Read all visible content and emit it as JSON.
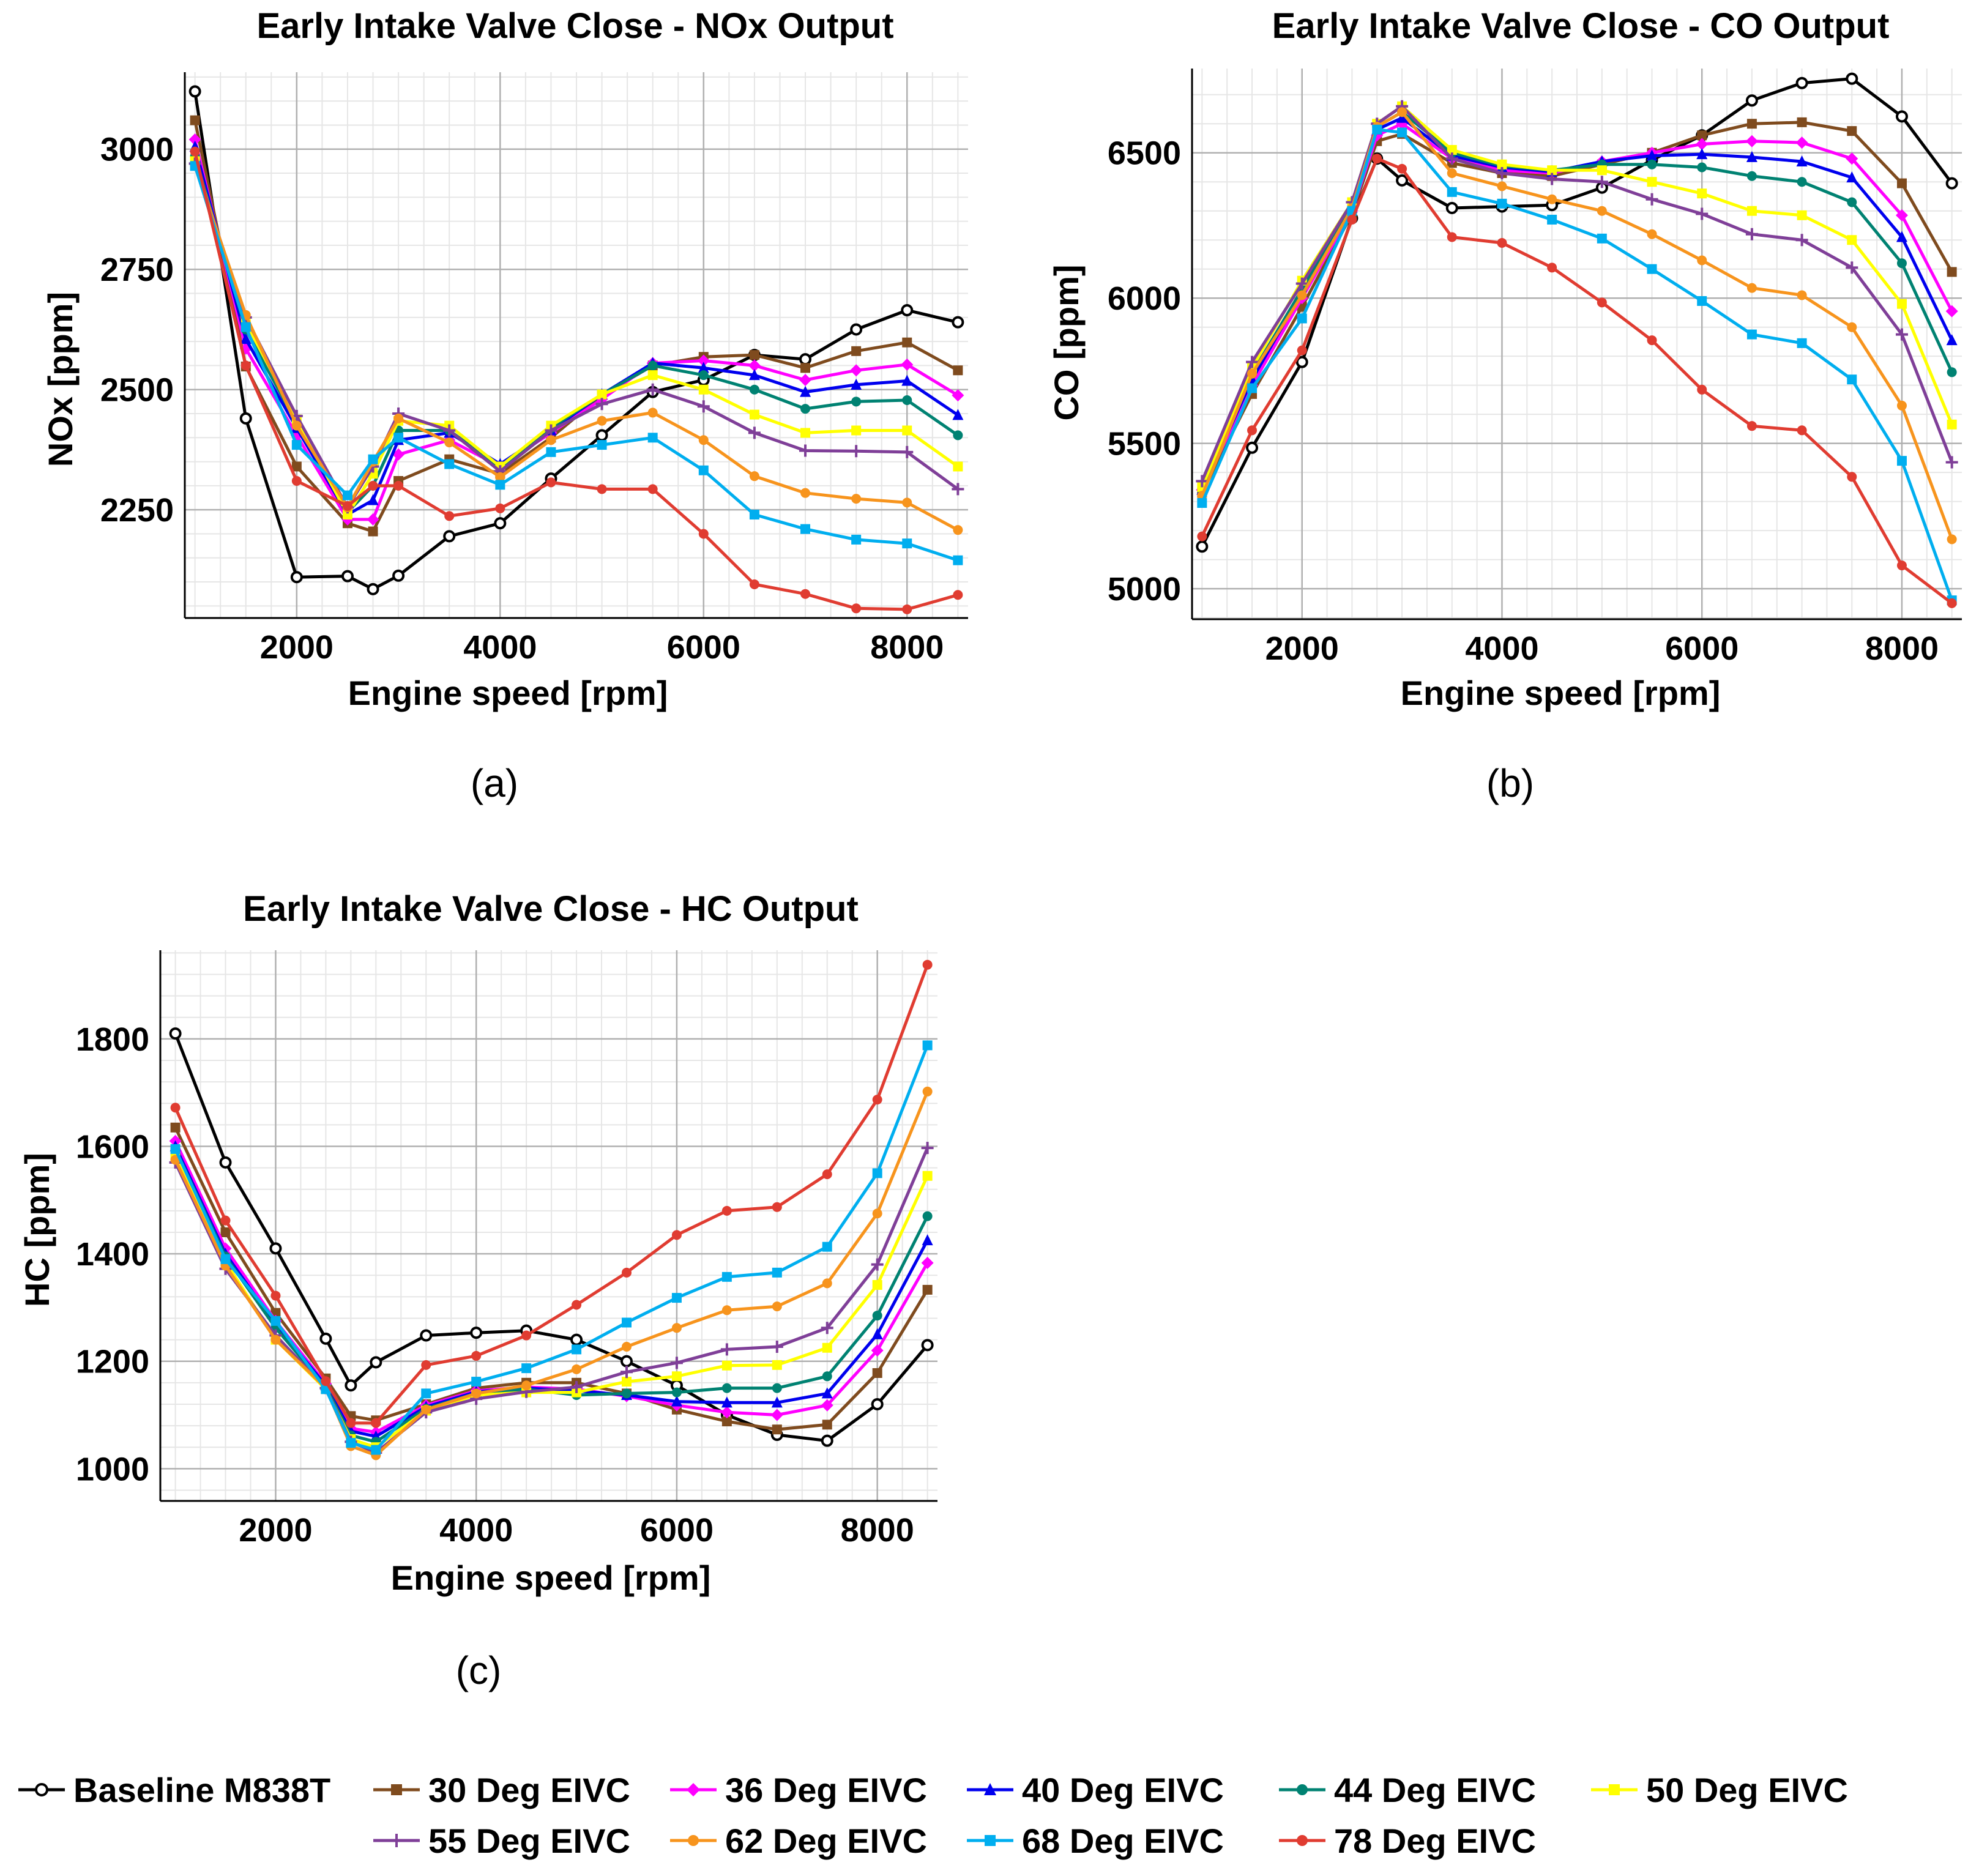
{
  "colors": {
    "baseline": "#000000",
    "d30": "#7f4b1e",
    "d36": "#ff00ff",
    "d40": "#0000ee",
    "d44": "#008272",
    "d50": "#ffff00",
    "d55": "#7f3f98",
    "d62": "#f7941d",
    "d68": "#00aeef",
    "d78": "#e03c31",
    "grid_major": "#b0b0b0",
    "grid_minor": "#e6e6e6"
  },
  "legend": [
    {
      "key": "baseline",
      "label": "Baseline M838T",
      "marker": "open-circle"
    },
    {
      "key": "d30",
      "label": "30 Deg EIVC",
      "marker": "square"
    },
    {
      "key": "d36",
      "label": "36 Deg EIVC",
      "marker": "diamond"
    },
    {
      "key": "d40",
      "label": "40 Deg EIVC",
      "marker": "triangle"
    },
    {
      "key": "d44",
      "label": "44 Deg EIVC",
      "marker": "circle"
    },
    {
      "key": "d50",
      "label": "50 Deg EIVC",
      "marker": "square"
    },
    {
      "key": "d55",
      "label": "55 Deg EIVC",
      "marker": "plus"
    },
    {
      "key": "d62",
      "label": "62 Deg EIVC",
      "marker": "circle"
    },
    {
      "key": "d68",
      "label": "68 Deg EIVC",
      "marker": "square"
    },
    {
      "key": "d78",
      "label": "78 Deg EIVC",
      "marker": "circle"
    }
  ],
  "chart_data": [
    {
      "id": "nox",
      "type": "line",
      "caption": "(a)",
      "title": "Early Intake Valve Close - NOx Output",
      "xlabel": "Engine speed [rpm]",
      "ylabel": "NOx [ppm]",
      "xlim": [
        900,
        8600
      ],
      "ylim": [
        2025,
        3160
      ],
      "xticks": [
        2000,
        4000,
        6000,
        8000
      ],
      "yticks": [
        2250,
        2500,
        2750,
        3000
      ],
      "x": [
        1000,
        1500,
        2000,
        2500,
        2750,
        3000,
        3500,
        4000,
        4500,
        5000,
        5500,
        6000,
        6500,
        7000,
        7500,
        8000,
        8500
      ],
      "series": [
        {
          "key": "baseline",
          "name": "Baseline M838T",
          "values": [
            3120,
            2440,
            2110,
            2112,
            2085,
            2113,
            2195,
            2222,
            2315,
            2405,
            2495,
            2520,
            2572,
            2563,
            2625,
            2665,
            2640
          ]
        },
        {
          "key": "d30",
          "name": "30 Deg EIVC",
          "values": [
            3060,
            2548,
            2340,
            2222,
            2205,
            2310,
            2355,
            2325,
            2400,
            2488,
            2550,
            2568,
            2572,
            2545,
            2580,
            2598,
            2540
          ]
        },
        {
          "key": "d36",
          "name": "36 Deg EIVC",
          "values": [
            3020,
            2585,
            2405,
            2230,
            2230,
            2365,
            2395,
            2340,
            2410,
            2480,
            2555,
            2560,
            2550,
            2520,
            2540,
            2552,
            2488
          ]
        },
        {
          "key": "d40",
          "name": "40 Deg EIVC",
          "values": [
            3005,
            2605,
            2420,
            2240,
            2270,
            2395,
            2410,
            2345,
            2415,
            2490,
            2555,
            2545,
            2530,
            2495,
            2510,
            2518,
            2447
          ]
        },
        {
          "key": "d44",
          "name": "44 Deg EIVC",
          "values": [
            2985,
            2625,
            2430,
            2245,
            2300,
            2415,
            2415,
            2338,
            2420,
            2490,
            2550,
            2530,
            2500,
            2460,
            2475,
            2478,
            2405
          ]
        },
        {
          "key": "d50",
          "name": "50 Deg EIVC",
          "values": [
            2975,
            2640,
            2438,
            2240,
            2325,
            2435,
            2425,
            2340,
            2425,
            2490,
            2530,
            2500,
            2448,
            2410,
            2415,
            2415,
            2340
          ]
        },
        {
          "key": "d55",
          "name": "55 Deg EIVC",
          "values": [
            2970,
            2650,
            2445,
            2255,
            2340,
            2450,
            2415,
            2330,
            2415,
            2470,
            2500,
            2465,
            2410,
            2373,
            2372,
            2370,
            2293
          ]
        },
        {
          "key": "d62",
          "name": "62 Deg EIVC",
          "values": [
            2965,
            2655,
            2425,
            2255,
            2350,
            2440,
            2390,
            2318,
            2395,
            2435,
            2452,
            2395,
            2320,
            2285,
            2273,
            2265,
            2208
          ]
        },
        {
          "key": "d68",
          "name": "68 Deg EIVC",
          "values": [
            2965,
            2630,
            2385,
            2280,
            2355,
            2400,
            2345,
            2302,
            2370,
            2385,
            2400,
            2332,
            2240,
            2210,
            2188,
            2180,
            2145
          ]
        },
        {
          "key": "d78",
          "name": "78 Deg EIVC",
          "values": [
            2995,
            2550,
            2310,
            2258,
            2300,
            2300,
            2237,
            2253,
            2307,
            2293,
            2293,
            2200,
            2095,
            2075,
            2045,
            2043,
            2073
          ]
        }
      ]
    },
    {
      "id": "co",
      "type": "line",
      "caption": "(b)",
      "title": "Early Intake Valve Close - CO Output",
      "xlabel": "Engine speed [rpm]",
      "ylabel": "CO [ppm]",
      "xlim": [
        900,
        8600
      ],
      "ylim": [
        4895,
        6790
      ],
      "xticks": [
        2000,
        4000,
        6000,
        8000
      ],
      "yticks": [
        5000,
        5500,
        6000,
        6500
      ],
      "x": [
        1000,
        1500,
        2000,
        2500,
        2750,
        3000,
        3500,
        4000,
        4500,
        5000,
        5500,
        6000,
        6500,
        7000,
        7500,
        8000,
        8500
      ],
      "series": [
        {
          "key": "baseline",
          "name": "Baseline M838T",
          "values": [
            5145,
            5485,
            5780,
            6275,
            6480,
            6405,
            6310,
            6315,
            6320,
            6380,
            6475,
            6560,
            6680,
            6740,
            6755,
            6625,
            6395
          ]
        },
        {
          "key": "d30",
          "name": "30 Deg EIVC",
          "values": [
            5330,
            5670,
            5970,
            6290,
            6540,
            6565,
            6465,
            6430,
            6420,
            6460,
            6500,
            6560,
            6600,
            6605,
            6575,
            6395,
            6090
          ]
        },
        {
          "key": "d36",
          "name": "36 Deg EIVC",
          "values": [
            5340,
            5700,
            6000,
            6300,
            6560,
            6600,
            6480,
            6440,
            6430,
            6470,
            6500,
            6530,
            6540,
            6535,
            6480,
            6285,
            5955
          ]
        },
        {
          "key": "d40",
          "name": "40 Deg EIVC",
          "values": [
            5340,
            5720,
            6020,
            6310,
            6580,
            6620,
            6490,
            6450,
            6435,
            6470,
            6490,
            6495,
            6485,
            6470,
            6415,
            6210,
            5855
          ]
        },
        {
          "key": "d44",
          "name": "44 Deg EIVC",
          "values": [
            5340,
            5740,
            6030,
            6320,
            6590,
            6640,
            6500,
            6455,
            6440,
            6460,
            6460,
            6450,
            6420,
            6400,
            6330,
            6120,
            5745
          ]
        },
        {
          "key": "d50",
          "name": "50 Deg EIVC",
          "values": [
            5350,
            5760,
            6060,
            6330,
            6600,
            6660,
            6510,
            6460,
            6440,
            6440,
            6400,
            6360,
            6300,
            6285,
            6200,
            5980,
            5565
          ]
        },
        {
          "key": "d55",
          "name": "55 Deg EIVC",
          "values": [
            5370,
            5780,
            6050,
            6330,
            6600,
            6660,
            6480,
            6430,
            6410,
            6400,
            6340,
            6290,
            6220,
            6200,
            6105,
            5875,
            5435
          ]
        },
        {
          "key": "d62",
          "name": "62 Deg EIVC",
          "values": [
            5320,
            5740,
            6010,
            6310,
            6590,
            6640,
            6430,
            6385,
            6340,
            6300,
            6220,
            6130,
            6035,
            6010,
            5900,
            5630,
            5170
          ]
        },
        {
          "key": "d68",
          "name": "68 Deg EIVC",
          "values": [
            5295,
            5690,
            5930,
            6300,
            6580,
            6570,
            6365,
            6325,
            6270,
            6205,
            6100,
            5990,
            5875,
            5845,
            5720,
            5440,
            4960
          ]
        },
        {
          "key": "d78",
          "name": "78 Deg EIVC",
          "values": [
            5180,
            5545,
            5820,
            6270,
            6480,
            6445,
            6210,
            6190,
            6105,
            5985,
            5855,
            5685,
            5560,
            5545,
            5385,
            5080,
            4950
          ]
        }
      ]
    },
    {
      "id": "hc",
      "type": "line",
      "caption": "(c)",
      "title": "Early Intake Valve Close - HC Output",
      "xlabel": "Engine speed [rpm]",
      "ylabel": "HC [ppm]",
      "xlim": [
        850,
        8600
      ],
      "ylim": [
        940,
        1965
      ],
      "xticks": [
        2000,
        4000,
        6000,
        8000
      ],
      "yticks": [
        1000,
        1200,
        1400,
        1600,
        1800
      ],
      "x": [
        1000,
        1500,
        2000,
        2500,
        2750,
        3000,
        3500,
        4000,
        4500,
        5000,
        5500,
        6000,
        6500,
        7000,
        7500,
        8000,
        8500
      ],
      "series": [
        {
          "key": "baseline",
          "name": "Baseline M838T",
          "values": [
            1810,
            1570,
            1410,
            1242,
            1155,
            1198,
            1248,
            1253,
            1257,
            1240,
            1200,
            1155,
            1100,
            1063,
            1052,
            1120,
            1230
          ]
        },
        {
          "key": "d30",
          "name": "30 Deg EIVC",
          "values": [
            1635,
            1440,
            1290,
            1168,
            1098,
            1090,
            1120,
            1150,
            1160,
            1160,
            1140,
            1110,
            1088,
            1073,
            1082,
            1178,
            1333
          ]
        },
        {
          "key": "d36",
          "name": "36 Deg EIVC",
          "values": [
            1610,
            1410,
            1275,
            1158,
            1075,
            1068,
            1118,
            1145,
            1152,
            1148,
            1135,
            1118,
            1105,
            1100,
            1118,
            1220,
            1383
          ]
        },
        {
          "key": "d40",
          "name": "40 Deg EIVC",
          "values": [
            1600,
            1400,
            1268,
            1155,
            1070,
            1060,
            1115,
            1143,
            1150,
            1145,
            1137,
            1125,
            1123,
            1123,
            1140,
            1250,
            1425
          ]
        },
        {
          "key": "d44",
          "name": "44 Deg EIVC",
          "values": [
            1595,
            1395,
            1262,
            1152,
            1062,
            1050,
            1112,
            1140,
            1148,
            1137,
            1140,
            1142,
            1150,
            1150,
            1172,
            1285,
            1470
          ]
        },
        {
          "key": "d50",
          "name": "50 Deg EIVC",
          "values": [
            1580,
            1385,
            1240,
            1148,
            1055,
            1040,
            1108,
            1137,
            1142,
            1142,
            1162,
            1172,
            1192,
            1193,
            1225,
            1342,
            1545
          ]
        },
        {
          "key": "d55",
          "name": "55 Deg EIVC",
          "values": [
            1570,
            1372,
            1248,
            1150,
            1050,
            1030,
            1105,
            1130,
            1143,
            1152,
            1180,
            1197,
            1222,
            1227,
            1262,
            1380,
            1597
          ]
        },
        {
          "key": "d62",
          "name": "62 Deg EIVC",
          "values": [
            1575,
            1378,
            1240,
            1150,
            1042,
            1025,
            1110,
            1140,
            1155,
            1185,
            1227,
            1262,
            1295,
            1302,
            1345,
            1475,
            1702
          ]
        },
        {
          "key": "d68",
          "name": "68 Deg EIVC",
          "values": [
            1595,
            1390,
            1275,
            1148,
            1048,
            1035,
            1140,
            1162,
            1187,
            1222,
            1272,
            1318,
            1357,
            1365,
            1413,
            1550,
            1788
          ]
        },
        {
          "key": "d78",
          "name": "78 Deg EIVC",
          "values": [
            1672,
            1462,
            1322,
            1163,
            1085,
            1085,
            1193,
            1210,
            1248,
            1305,
            1365,
            1435,
            1480,
            1487,
            1548,
            1687,
            1938
          ]
        }
      ]
    }
  ]
}
